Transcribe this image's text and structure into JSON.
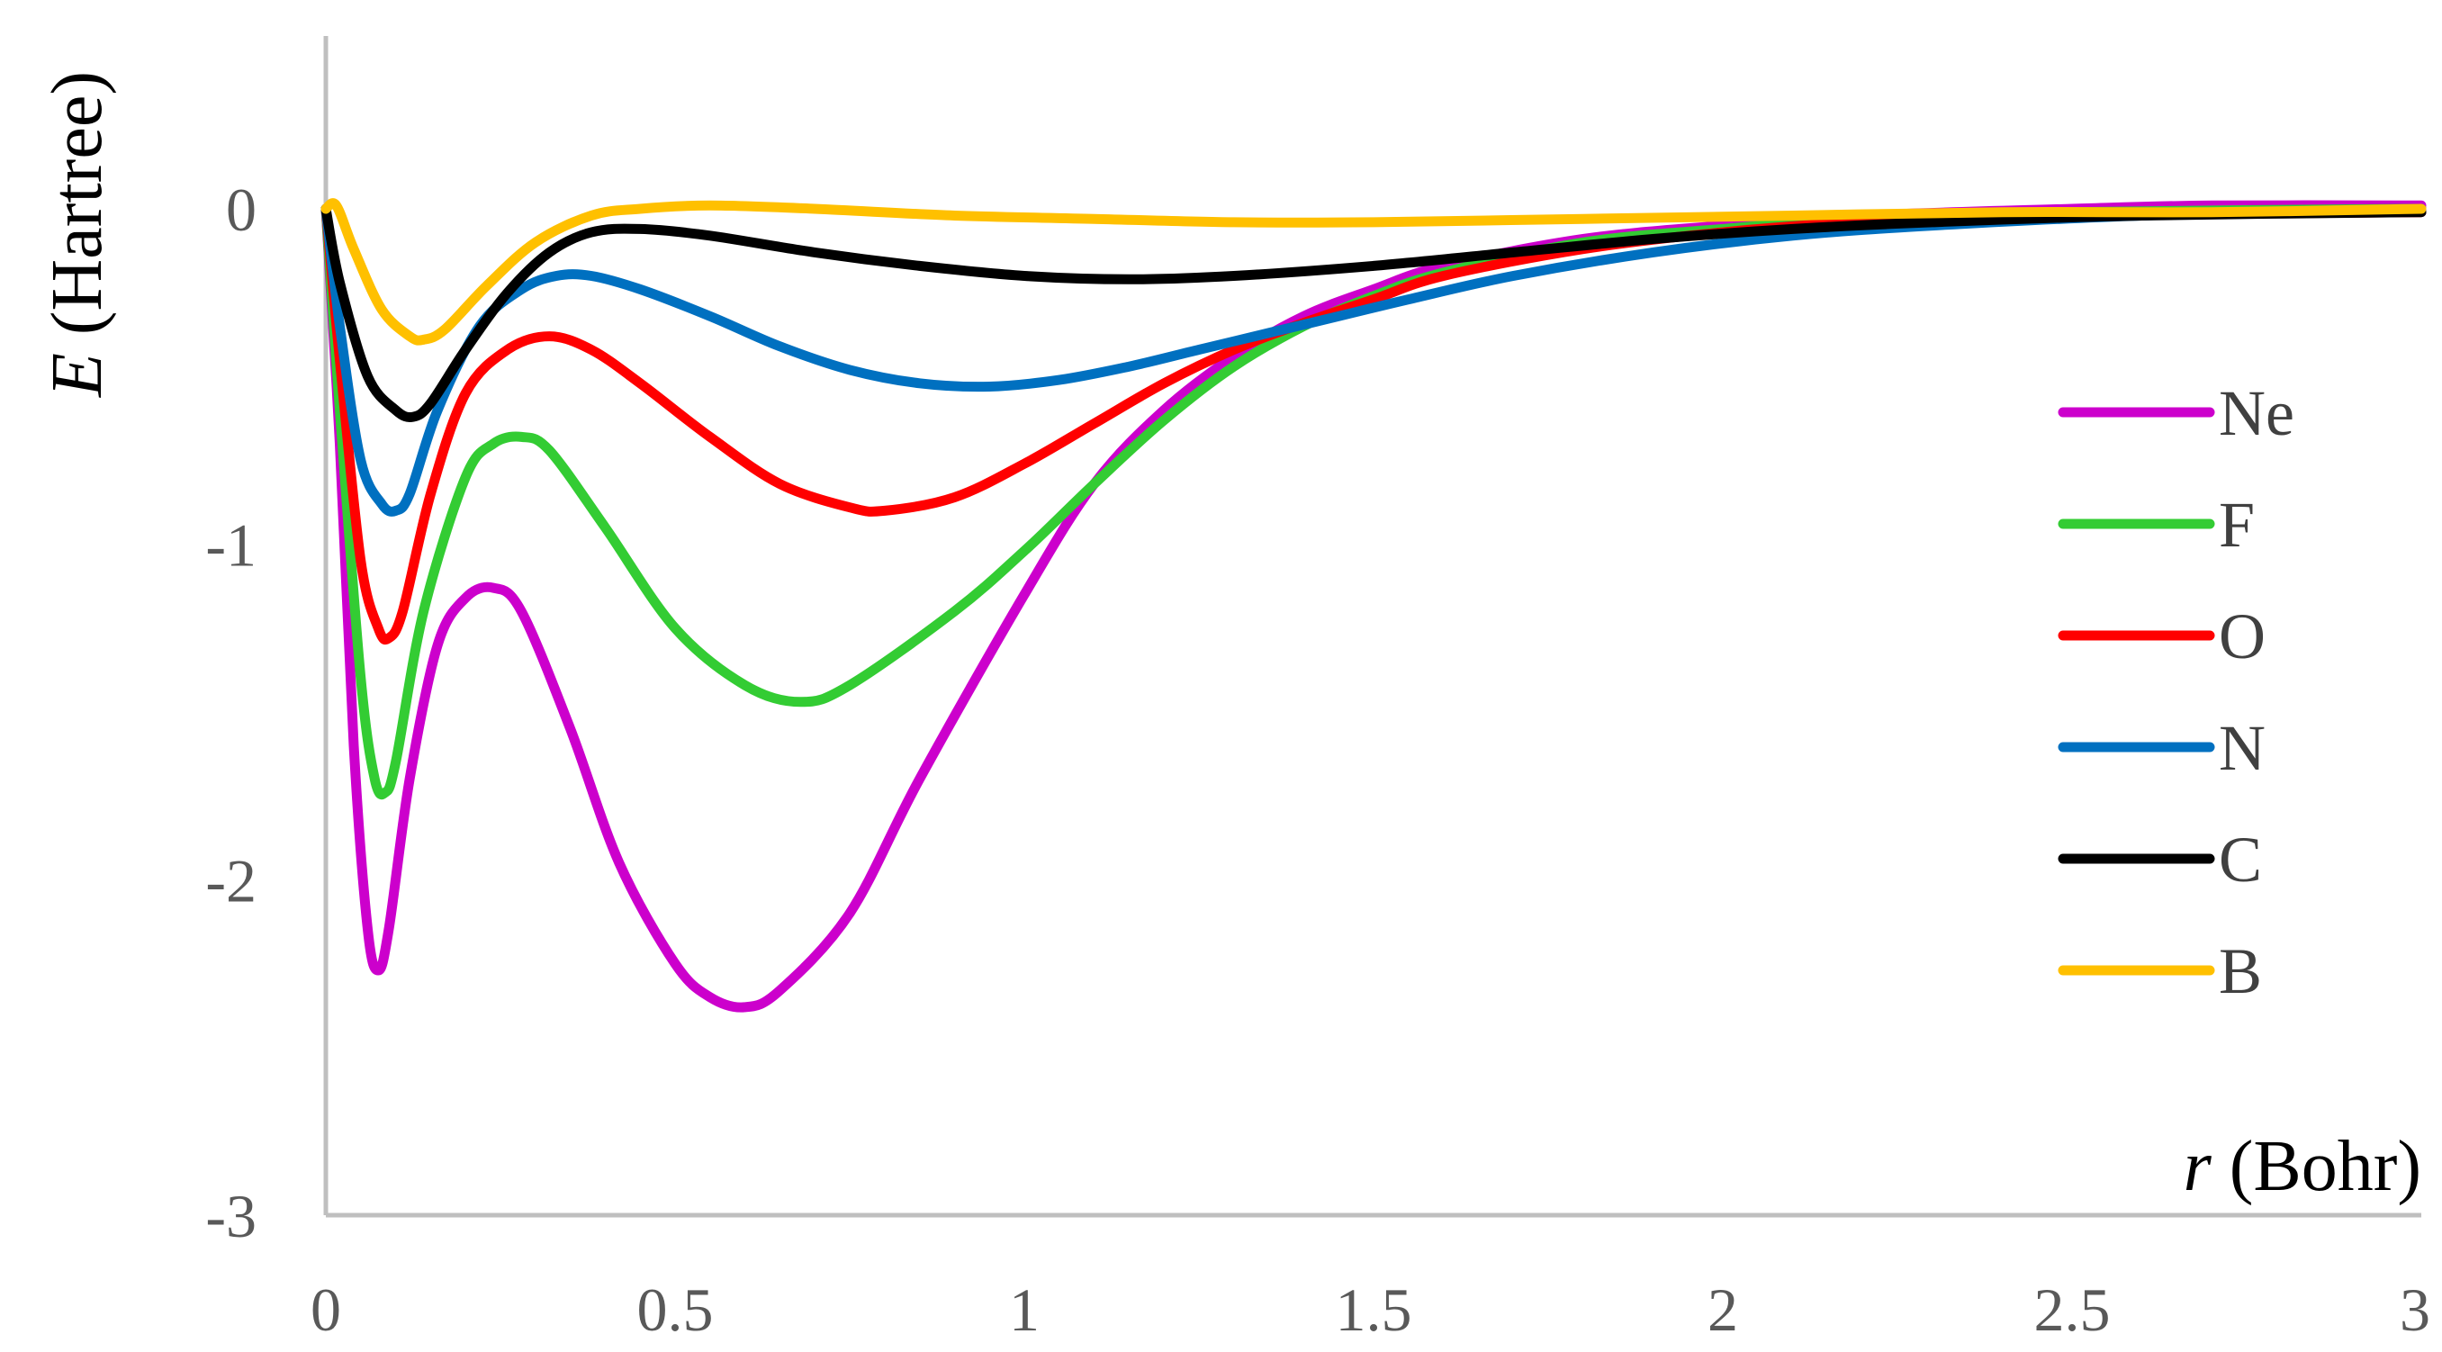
{
  "chart_data": {
    "type": "line",
    "xlabel_var": "r",
    "xlabel_unit": "(Bohr)",
    "ylabel_var": "E",
    "ylabel_unit": "(Hartree)",
    "xlim": [
      0,
      3
    ],
    "ylim": [
      -3,
      0.5
    ],
    "x_ticks": [
      0,
      0.5,
      1,
      1.5,
      2,
      2.5,
      3
    ],
    "x_tick_labels": [
      "0",
      "0.5",
      "1",
      "1.5",
      "2",
      "2.5",
      "3"
    ],
    "y_ticks": [
      0,
      -1,
      -2,
      -3
    ],
    "y_tick_labels": [
      "0",
      "-1",
      "-2",
      "-3"
    ],
    "grid": false,
    "legend_position": "right",
    "series": [
      {
        "name": "Ne",
        "color": "#CC00CC",
        "points": [
          [
            0,
            0
          ],
          [
            0.02,
            -0.7
          ],
          [
            0.04,
            -1.6
          ],
          [
            0.06,
            -2.15
          ],
          [
            0.075,
            -2.27
          ],
          [
            0.09,
            -2.15
          ],
          [
            0.12,
            -1.7
          ],
          [
            0.16,
            -1.3
          ],
          [
            0.2,
            -1.16
          ],
          [
            0.24,
            -1.13
          ],
          [
            0.28,
            -1.2
          ],
          [
            0.35,
            -1.55
          ],
          [
            0.42,
            -1.95
          ],
          [
            0.5,
            -2.25
          ],
          [
            0.55,
            -2.35
          ],
          [
            0.6,
            -2.38
          ],
          [
            0.65,
            -2.33
          ],
          [
            0.75,
            -2.1
          ],
          [
            0.85,
            -1.7
          ],
          [
            1.0,
            -1.15
          ],
          [
            1.1,
            -0.82
          ],
          [
            1.2,
            -0.6
          ],
          [
            1.3,
            -0.44
          ],
          [
            1.4,
            -0.32
          ],
          [
            1.5,
            -0.24
          ],
          [
            1.6,
            -0.17
          ],
          [
            1.8,
            -0.09
          ],
          [
            2.0,
            -0.05
          ],
          [
            2.2,
            -0.02
          ],
          [
            2.5,
            0.0
          ],
          [
            2.7,
            0.01
          ],
          [
            3.0,
            0.01
          ]
        ]
      },
      {
        "name": "F",
        "color": "#33CC33",
        "points": [
          [
            0,
            0
          ],
          [
            0.02,
            -0.6
          ],
          [
            0.05,
            -1.4
          ],
          [
            0.07,
            -1.7
          ],
          [
            0.085,
            -1.74
          ],
          [
            0.1,
            -1.65
          ],
          [
            0.14,
            -1.2
          ],
          [
            0.2,
            -0.8
          ],
          [
            0.24,
            -0.7
          ],
          [
            0.28,
            -0.68
          ],
          [
            0.32,
            -0.72
          ],
          [
            0.4,
            -0.95
          ],
          [
            0.5,
            -1.25
          ],
          [
            0.6,
            -1.42
          ],
          [
            0.68,
            -1.47
          ],
          [
            0.75,
            -1.42
          ],
          [
            0.9,
            -1.2
          ],
          [
            1.0,
            -1.02
          ],
          [
            1.1,
            -0.82
          ],
          [
            1.2,
            -0.63
          ],
          [
            1.3,
            -0.47
          ],
          [
            1.4,
            -0.35
          ],
          [
            1.5,
            -0.26
          ],
          [
            1.6,
            -0.19
          ],
          [
            1.8,
            -0.1
          ],
          [
            2.0,
            -0.06
          ],
          [
            2.2,
            -0.03
          ],
          [
            2.5,
            -0.01
          ],
          [
            3.0,
            0.0
          ]
        ]
      },
      {
        "name": "O",
        "color": "#FF0000",
        "points": [
          [
            0,
            0
          ],
          [
            0.02,
            -0.45
          ],
          [
            0.05,
            -1.05
          ],
          [
            0.075,
            -1.25
          ],
          [
            0.09,
            -1.28
          ],
          [
            0.11,
            -1.2
          ],
          [
            0.15,
            -0.85
          ],
          [
            0.2,
            -0.55
          ],
          [
            0.26,
            -0.42
          ],
          [
            0.32,
            -0.38
          ],
          [
            0.38,
            -0.42
          ],
          [
            0.45,
            -0.52
          ],
          [
            0.55,
            -0.68
          ],
          [
            0.65,
            -0.82
          ],
          [
            0.75,
            -0.89
          ],
          [
            0.8,
            -0.9
          ],
          [
            0.9,
            -0.86
          ],
          [
            1.0,
            -0.76
          ],
          [
            1.1,
            -0.64
          ],
          [
            1.2,
            -0.52
          ],
          [
            1.3,
            -0.42
          ],
          [
            1.4,
            -0.34
          ],
          [
            1.5,
            -0.27
          ],
          [
            1.6,
            -0.2
          ],
          [
            1.8,
            -0.12
          ],
          [
            2.0,
            -0.07
          ],
          [
            2.2,
            -0.04
          ],
          [
            2.5,
            -0.02
          ],
          [
            3.0,
            -0.01
          ]
        ]
      },
      {
        "name": "N",
        "color": "#0070C0",
        "points": [
          [
            0,
            0
          ],
          [
            0.02,
            -0.35
          ],
          [
            0.05,
            -0.75
          ],
          [
            0.08,
            -0.88
          ],
          [
            0.1,
            -0.9
          ],
          [
            0.12,
            -0.85
          ],
          [
            0.16,
            -0.6
          ],
          [
            0.22,
            -0.35
          ],
          [
            0.28,
            -0.24
          ],
          [
            0.33,
            -0.2
          ],
          [
            0.38,
            -0.2
          ],
          [
            0.45,
            -0.24
          ],
          [
            0.55,
            -0.32
          ],
          [
            0.65,
            -0.41
          ],
          [
            0.75,
            -0.48
          ],
          [
            0.85,
            -0.52
          ],
          [
            0.95,
            -0.53
          ],
          [
            1.05,
            -0.51
          ],
          [
            1.15,
            -0.47
          ],
          [
            1.25,
            -0.42
          ],
          [
            1.35,
            -0.37
          ],
          [
            1.45,
            -0.32
          ],
          [
            1.55,
            -0.27
          ],
          [
            1.7,
            -0.2
          ],
          [
            1.9,
            -0.13
          ],
          [
            2.1,
            -0.08
          ],
          [
            2.3,
            -0.05
          ],
          [
            2.6,
            -0.02
          ],
          [
            3.0,
            0.0
          ]
        ]
      },
      {
        "name": "C",
        "color": "#000000",
        "points": [
          [
            0,
            0
          ],
          [
            0.02,
            -0.22
          ],
          [
            0.06,
            -0.5
          ],
          [
            0.1,
            -0.6
          ],
          [
            0.125,
            -0.62
          ],
          [
            0.15,
            -0.58
          ],
          [
            0.2,
            -0.42
          ],
          [
            0.26,
            -0.25
          ],
          [
            0.32,
            -0.13
          ],
          [
            0.38,
            -0.07
          ],
          [
            0.45,
            -0.06
          ],
          [
            0.55,
            -0.08
          ],
          [
            0.7,
            -0.13
          ],
          [
            0.85,
            -0.17
          ],
          [
            1.0,
            -0.2
          ],
          [
            1.15,
            -0.21
          ],
          [
            1.3,
            -0.2
          ],
          [
            1.5,
            -0.17
          ],
          [
            1.7,
            -0.13
          ],
          [
            1.9,
            -0.09
          ],
          [
            2.1,
            -0.06
          ],
          [
            2.3,
            -0.04
          ],
          [
            2.6,
            -0.02
          ],
          [
            3.0,
            -0.01
          ]
        ]
      },
      {
        "name": "B",
        "color": "#FFC000",
        "points": [
          [
            0,
            0
          ],
          [
            0.015,
            0.01
          ],
          [
            0.04,
            -0.12
          ],
          [
            0.08,
            -0.3
          ],
          [
            0.12,
            -0.38
          ],
          [
            0.14,
            -0.39
          ],
          [
            0.17,
            -0.36
          ],
          [
            0.23,
            -0.23
          ],
          [
            0.3,
            -0.1
          ],
          [
            0.38,
            -0.02
          ],
          [
            0.45,
            0.0
          ],
          [
            0.55,
            0.01
          ],
          [
            0.7,
            0.0
          ],
          [
            0.9,
            -0.02
          ],
          [
            1.1,
            -0.03
          ],
          [
            1.3,
            -0.04
          ],
          [
            1.5,
            -0.04
          ],
          [
            1.8,
            -0.03
          ],
          [
            2.1,
            -0.02
          ],
          [
            2.4,
            -0.01
          ],
          [
            2.7,
            -0.01
          ],
          [
            3.0,
            0.0
          ]
        ]
      }
    ]
  }
}
